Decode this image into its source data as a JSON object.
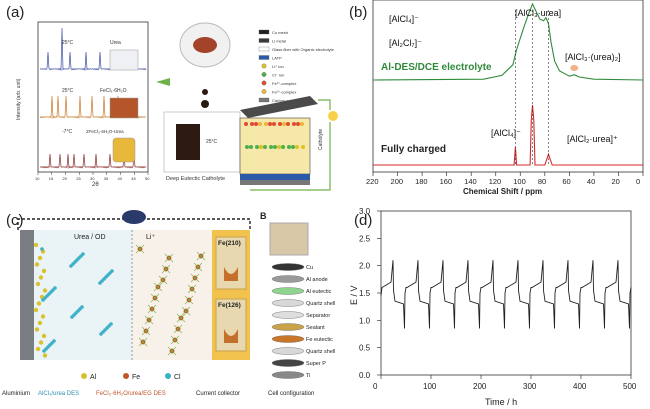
{
  "panel_labels": {
    "a": "(a)",
    "b": "(b)",
    "c": "(c)",
    "d": "(d)"
  },
  "panel_a": {
    "ylabel": "Intensity (arb. unit)",
    "xlabel": "2θ",
    "xticks": [
      "10",
      "15",
      "20",
      "25",
      "30",
      "35",
      "40",
      "45",
      "50"
    ],
    "traces": [
      {
        "temp": "25°C",
        "name": "Urea",
        "color": "#3d4fa3"
      },
      {
        "temp": "25°C",
        "name": "FeCl₃·6H₂O",
        "color": "#c77a2a"
      },
      {
        "temp": "-7°C",
        "name": "2FeCl₃·6H₂O-Urea",
        "color": "#8a2a2a"
      }
    ],
    "catholyte_label": "Deep Eutectic Catholyte",
    "beaker_temp": "25°C",
    "cell_label": "Catholyte",
    "legend": [
      {
        "text": "Cu mesh",
        "color": "#222"
      },
      {
        "text": "Li metal",
        "color": "#3a3a3a"
      },
      {
        "text": "Glass fiber with Organic electrolyte",
        "color": "#ffffff"
      },
      {
        "text": "LATP",
        "color": "#2b5aa8"
      },
      {
        "text": "Li⁺ ion",
        "color": "#e0c020"
      },
      {
        "text": "Cl⁻ ion",
        "color": "#4caf50"
      },
      {
        "text": "Fe³⁺-complex",
        "color": "#e24a33"
      },
      {
        "text": "Fe²⁺-complex",
        "color": "#f2b33d"
      },
      {
        "text": "Carbon paste",
        "color": "#777"
      },
      {
        "text": "Ti mesh",
        "color": "#9ab"
      }
    ]
  },
  "chart_data": [
    {
      "type": "line",
      "title": "",
      "xlabel": "Chemical Shift / ppm",
      "ylabel": "",
      "xlim": [
        220,
        0
      ],
      "xticks": [
        220,
        200,
        180,
        160,
        140,
        120,
        100,
        80,
        60,
        40,
        20,
        0
      ],
      "grid": false,
      "series": [
        {
          "name": "Al-DES/DCE electrolyte",
          "color": "#2e8b3a",
          "x": [
            220,
            130,
            115,
            106,
            103,
            100,
            97,
            93,
            90,
            87,
            84,
            81,
            79,
            77,
            75,
            72,
            68,
            60,
            56,
            52,
            40,
            0
          ],
          "y": [
            0,
            0.01,
            0.06,
            0.2,
            0.4,
            0.55,
            0.7,
            0.88,
            1.0,
            0.9,
            0.8,
            0.78,
            0.82,
            0.74,
            0.5,
            0.25,
            0.12,
            0.05,
            0.07,
            0.04,
            0.01,
            0
          ]
        },
        {
          "name": "Fully charged",
          "color": "#d42a2a",
          "x": [
            220,
            106,
            105,
            104,
            103,
            100,
            92,
            91,
            90,
            89,
            88,
            80,
            78,
            77,
            76,
            74,
            0
          ],
          "y": [
            0,
            0,
            0,
            0.3,
            0,
            0,
            0,
            0.75,
            1.0,
            0.75,
            0,
            0,
            0.12,
            0.18,
            0.12,
            0,
            0
          ]
        }
      ],
      "annotations": [
        "[AlCl₄]⁻",
        "[Al₂Cl₇]⁻",
        "[AlCl₃·urea]",
        "[AlCl₃·(urea)₂]",
        "[AlCl₄]⁻",
        "[AlCl₂·urea]⁺"
      ]
    },
    {
      "type": "line",
      "title": "",
      "xlabel": "Time / h",
      "ylabel": "E / V",
      "xlim": [
        0,
        500
      ],
      "ylim": [
        0,
        3
      ],
      "xticks": [
        0,
        100,
        200,
        300,
        400,
        500
      ],
      "yticks": [
        0,
        0.5,
        1.0,
        1.5,
        2.0,
        2.5,
        3.0
      ],
      "grid": false,
      "series": [
        {
          "name": "",
          "color": "#222",
          "cycles": 10,
          "period": 50,
          "start": 0,
          "charge_plateau": 1.65,
          "discharge_plateau": 1.35,
          "peak": 2.1,
          "trough": 0.85
        }
      ]
    }
  ],
  "panel_c": {
    "top_labels": [
      "Urea / OD",
      "Li⁺"
    ],
    "fe_labels": [
      "Fe(210)",
      "Fe(126)"
    ],
    "legend": [
      {
        "text": "Al",
        "color": "#d9c22e",
        "sym": "dot"
      },
      {
        "text": "Fe",
        "color": "#c0562a",
        "sym": "dot"
      },
      {
        "text": "Cl",
        "color": "#3bb0c9",
        "sym": "dot"
      }
    ],
    "bottom_labels": [
      {
        "text": "Aluminium",
        "color": "#222"
      },
      {
        "text": "AlCl₃/urea DES",
        "color": "#2f8fb0"
      },
      {
        "text": "FeCl₃·6H₂O/urea/EG DES",
        "color": "#c0562a"
      },
      {
        "text": "Current collector",
        "color": "#222"
      }
    ]
  },
  "panel_B": {
    "label": "B",
    "layers": [
      "Cu",
      "Al anode",
      "Al eutectic",
      "Quartz shell",
      "Separator",
      "Sealant",
      "Fe eutectic",
      "Quartz shell",
      "Super P",
      "Ti"
    ],
    "caption": "Cell configuration"
  }
}
